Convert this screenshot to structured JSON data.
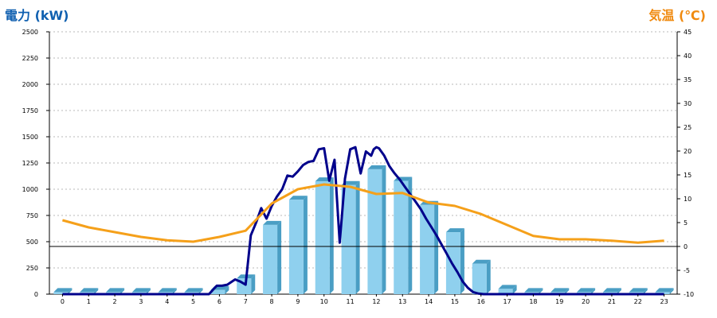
{
  "chart_data": {
    "type": "bar+line",
    "title_left": "電力 (kW)",
    "title_right": "気温 (℃)",
    "left_axis": {
      "min": 0,
      "max": 2500,
      "ticks": [
        0,
        250,
        500,
        750,
        1000,
        1250,
        1500,
        1750,
        2000,
        2250,
        2500
      ]
    },
    "right_axis": {
      "min": -10,
      "max": 45,
      "ticks": [
        -10,
        -5,
        0,
        5,
        10,
        15,
        20,
        25,
        30,
        35,
        40,
        45
      ]
    },
    "categories": [
      "0",
      "1",
      "2",
      "3",
      "4",
      "5",
      "6",
      "7",
      "8",
      "9",
      "10",
      "11",
      "12",
      "13",
      "14",
      "15",
      "16",
      "17",
      "18",
      "19",
      "20",
      "21",
      "22",
      "23"
    ],
    "series": [
      {
        "kind": "bar",
        "color": "#8fd0ee",
        "side_color": "#4a9ec4",
        "values": [
          20,
          20,
          20,
          20,
          20,
          20,
          40,
          150,
          660,
          900,
          1075,
          1040,
          1190,
          1080,
          850,
          590,
          290,
          50,
          20,
          20,
          20,
          20,
          20,
          20
        ]
      },
      {
        "kind": "line",
        "color": "#00008b",
        "axis": "left",
        "x": [
          0,
          1,
          2,
          3,
          4,
          5,
          5.3,
          5.6,
          5.9,
          6.1,
          6.3,
          6.6,
          6.8,
          7.0,
          7.2,
          7.4,
          7.6,
          7.8,
          8.0,
          8.2,
          8.4,
          8.6,
          8.8,
          9.0,
          9.2,
          9.4,
          9.6,
          9.8,
          10.0,
          10.2,
          10.4,
          10.6,
          10.8,
          11.0,
          11.2,
          11.4,
          11.6,
          11.8,
          11.9,
          12.0,
          12.1,
          12.3,
          12.5,
          12.7,
          12.9,
          13.1,
          13.3,
          13.5,
          13.7,
          13.9,
          14.1,
          14.3,
          14.5,
          14.7,
          14.9,
          15.1,
          15.3,
          15.5,
          15.7,
          15.9,
          16.1,
          16.3,
          16.5,
          16.7,
          16.9,
          17.0,
          18,
          19,
          20,
          21,
          22,
          23
        ],
        "y": [
          0,
          0,
          0,
          0,
          0,
          0,
          0,
          0,
          80,
          80,
          90,
          140,
          120,
          90,
          560,
          680,
          820,
          720,
          840,
          930,
          1000,
          1130,
          1120,
          1170,
          1230,
          1260,
          1270,
          1380,
          1390,
          1080,
          1280,
          490,
          1100,
          1380,
          1400,
          1150,
          1360,
          1320,
          1380,
          1400,
          1390,
          1320,
          1220,
          1150,
          1090,
          1020,
          950,
          880,
          810,
          720,
          640,
          560,
          470,
          380,
          290,
          210,
          120,
          60,
          20,
          5,
          0,
          0,
          0,
          0,
          0,
          0,
          0,
          0,
          0,
          0,
          0,
          0
        ]
      },
      {
        "kind": "line",
        "color": "#f5a01a",
        "axis": "right",
        "x": [
          0,
          1,
          2,
          3,
          4,
          5,
          6,
          7,
          8,
          9,
          10,
          11,
          12,
          13,
          14,
          15,
          16,
          17,
          18,
          19,
          20,
          21,
          22,
          23
        ],
        "y": [
          5.5,
          4,
          3,
          2,
          1.3,
          1,
          2,
          3.3,
          9,
          12,
          13,
          12.5,
          11,
          11.2,
          9.2,
          8.5,
          6.8,
          4.5,
          2.2,
          1.5,
          1.5,
          1.2,
          0.8,
          1.2
        ]
      }
    ],
    "grid": true
  }
}
